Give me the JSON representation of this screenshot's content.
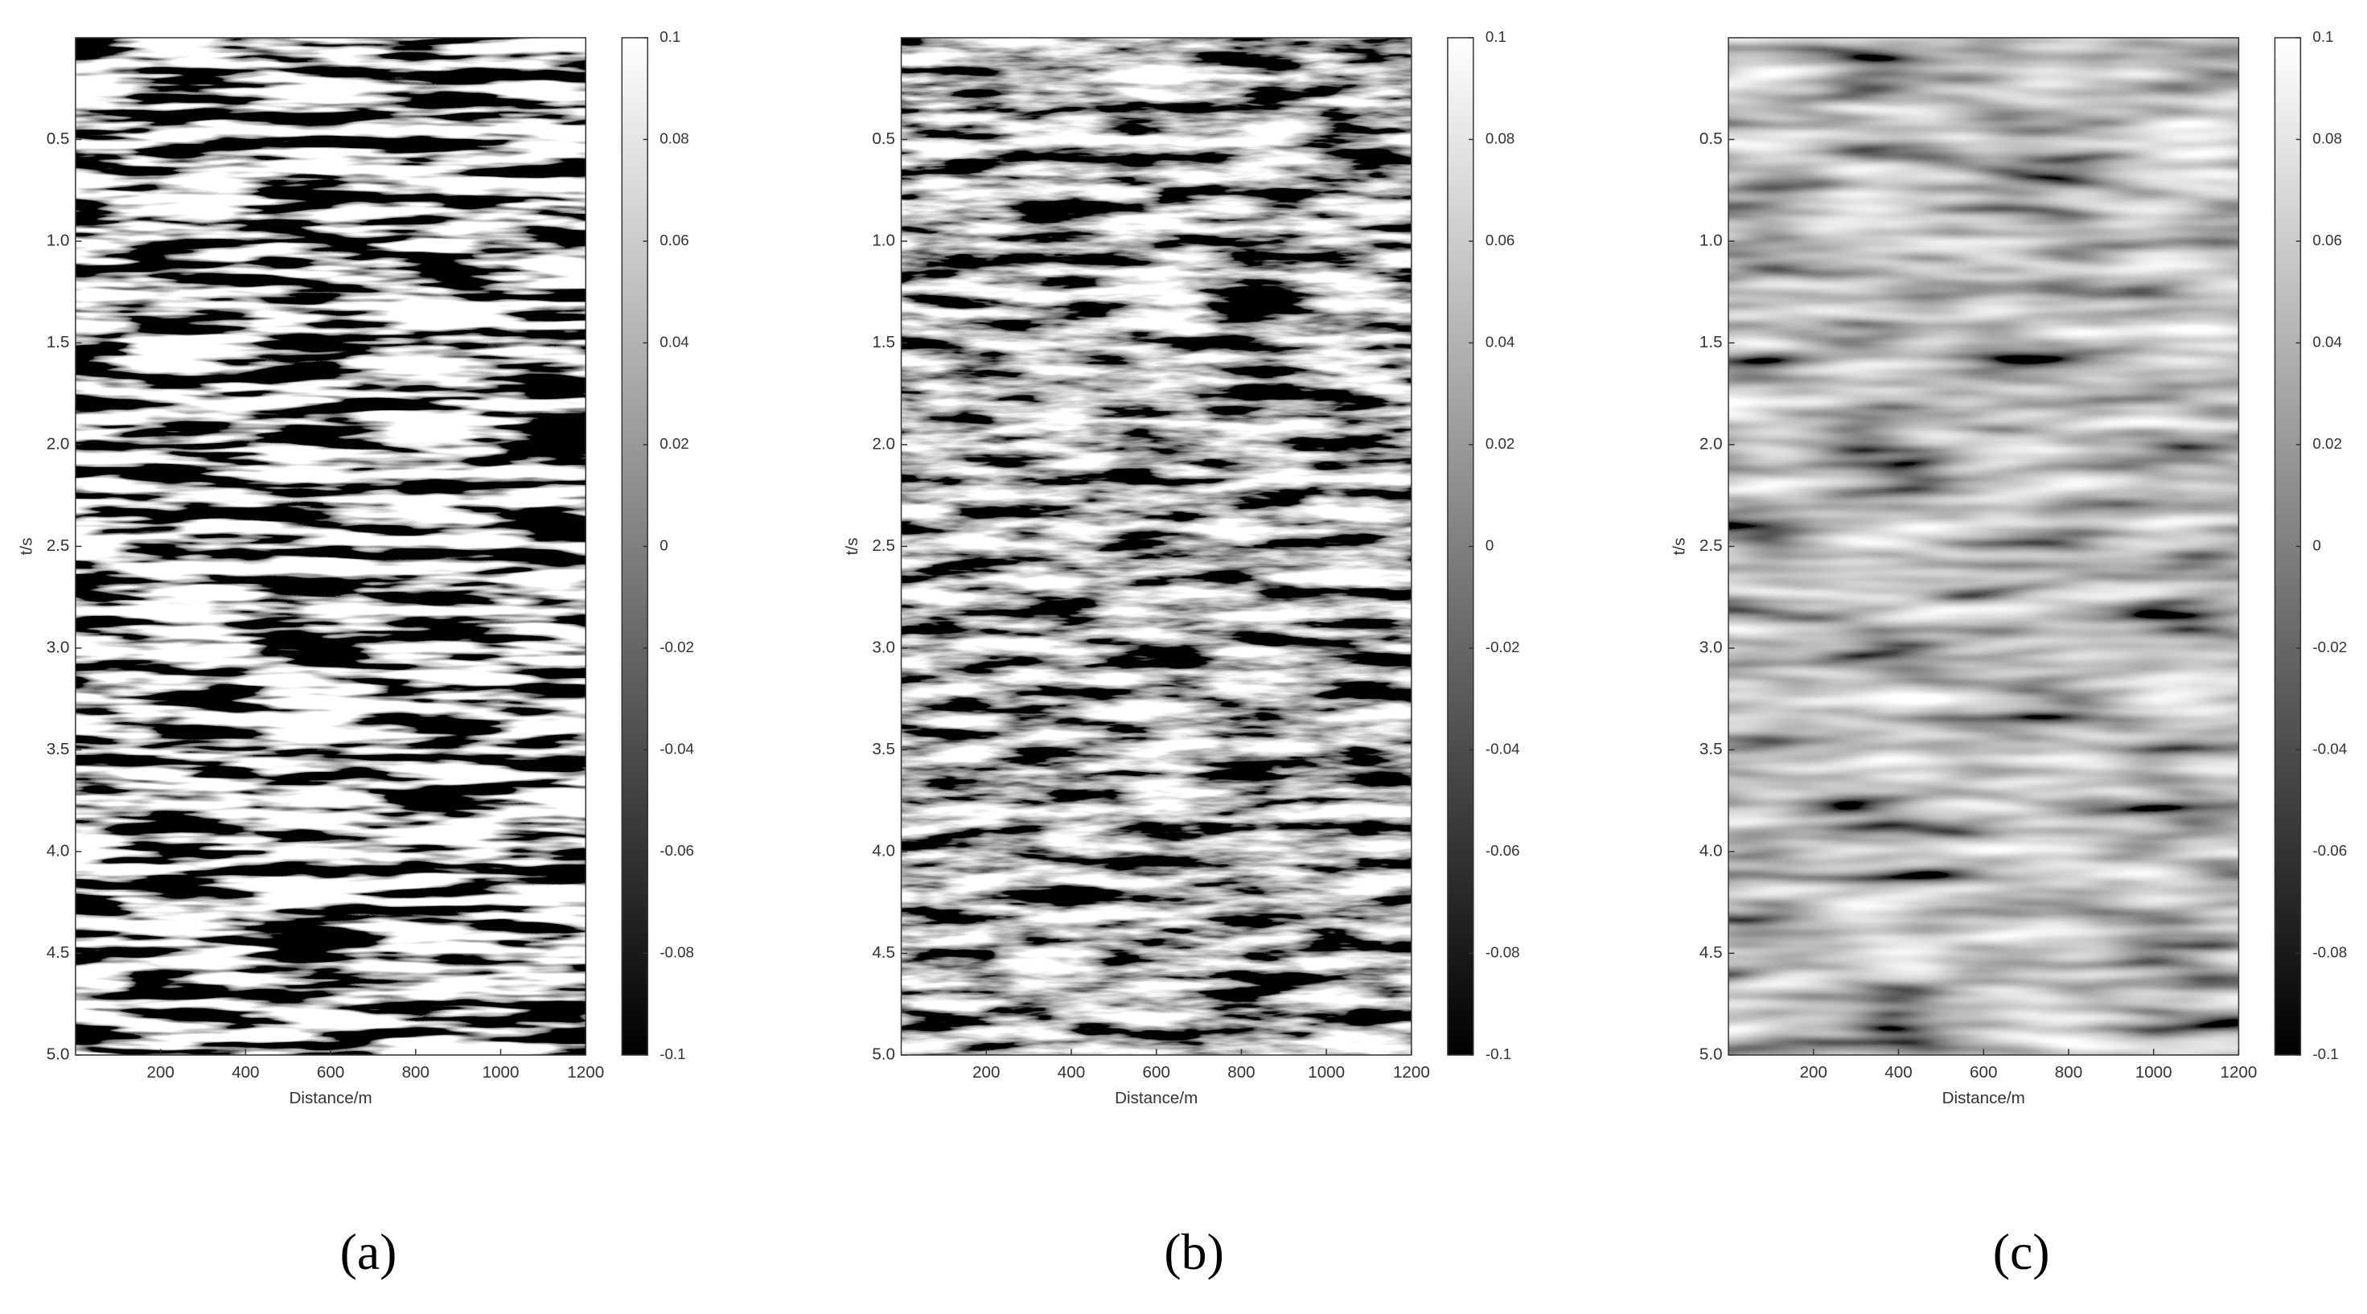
{
  "chart_data": [
    {
      "type": "heatmap",
      "panel_label": "(a)",
      "xlabel": "Distance/m",
      "ylabel": "t/s",
      "xlim": [
        0,
        1200
      ],
      "xticks": [
        200,
        400,
        600,
        800,
        1000,
        1200
      ],
      "ylim": [
        0,
        5
      ],
      "y_reversed": true,
      "yticks": [
        0.5,
        {
          "value": 1,
          "label": "1.0"
        },
        1.5,
        {
          "value": 2,
          "label": "2.0"
        },
        2.5,
        {
          "value": 3,
          "label": "3.0"
        },
        3.5,
        {
          "value": 4,
          "label": "4.0"
        },
        4.5,
        {
          "value": 5,
          "label": "5.0"
        }
      ],
      "clim": [
        -0.1,
        0.1
      ],
      "cticks": [
        -0.1,
        -0.08,
        -0.06,
        -0.04,
        -0.02,
        0,
        0.02,
        0.04,
        0.06,
        0.08,
        0.1
      ],
      "colormap": [
        "#000000",
        "#ffffff"
      ]
    },
    {
      "type": "heatmap",
      "panel_label": "(b)",
      "xlabel": "Distance/m",
      "ylabel": "t/s",
      "xlim": [
        0,
        1200
      ],
      "xticks": [
        200,
        400,
        600,
        800,
        1000,
        1200
      ],
      "ylim": [
        0,
        5
      ],
      "y_reversed": true,
      "yticks": [
        0.5,
        {
          "value": 1,
          "label": "1.0"
        },
        1.5,
        {
          "value": 2,
          "label": "2.0"
        },
        2.5,
        {
          "value": 3,
          "label": "3.0"
        },
        3.5,
        {
          "value": 4,
          "label": "4.0"
        },
        4.5,
        {
          "value": 5,
          "label": "5.0"
        }
      ],
      "clim": [
        -0.1,
        0.1
      ],
      "cticks": [
        -0.1,
        -0.08,
        -0.06,
        -0.04,
        -0.02,
        0,
        0.02,
        0.04,
        0.06,
        0.08,
        0.1
      ],
      "colormap": [
        "#000000",
        "#ffffff"
      ]
    },
    {
      "type": "heatmap",
      "panel_label": "(c)",
      "xlabel": "Distance/m",
      "ylabel": "t/s",
      "xlim": [
        0,
        1200
      ],
      "xticks": [
        200,
        400,
        600,
        800,
        1000,
        1200
      ],
      "ylim": [
        0,
        5
      ],
      "y_reversed": true,
      "yticks": [
        0.5,
        {
          "value": 1,
          "label": "1.0"
        },
        1.5,
        {
          "value": 2,
          "label": "2.0"
        },
        2.5,
        {
          "value": 3,
          "label": "3.0"
        },
        3.5,
        {
          "value": 4,
          "label": "4.0"
        },
        4.5,
        {
          "value": 5,
          "label": "5.0"
        }
      ],
      "clim": [
        -0.1,
        0.1
      ],
      "cticks": [
        -0.1,
        -0.08,
        -0.06,
        -0.04,
        -0.02,
        0,
        0.02,
        0.04,
        0.06,
        0.08,
        0.1
      ],
      "colormap": [
        "#000000",
        "#ffffff"
      ]
    }
  ]
}
